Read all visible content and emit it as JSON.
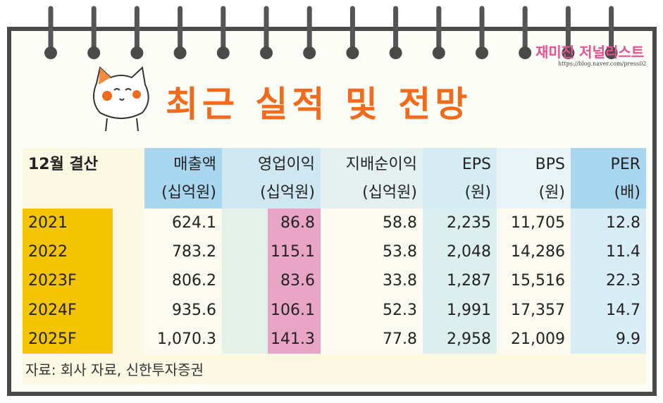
{
  "header": {
    "title": "최근 실적 및 전망",
    "logo": "재미진 저널리스트",
    "url": "https://blog.naver.com/press02"
  },
  "table": {
    "columns": [
      {
        "name": "12월 결산"
      },
      {
        "name": "매출액",
        "unit": "(십억원)"
      },
      {
        "name": "영업이익",
        "unit": "(십억원)"
      },
      {
        "name": "지배순이익",
        "unit": "(십억원)"
      },
      {
        "name": "EPS",
        "unit": "(원)"
      },
      {
        "name": "BPS",
        "unit": "(원)"
      },
      {
        "name": "PER",
        "unit": "(배)"
      }
    ],
    "rows": [
      [
        "2021",
        "624.1",
        "86.8",
        "58.8",
        "2,235",
        "11,705",
        "12.8"
      ],
      [
        "2022",
        "783.2",
        "115.1",
        "53.8",
        "2,048",
        "14,286",
        "11.4"
      ],
      [
        "2023F",
        "806.2",
        "83.6",
        "33.8",
        "1,287",
        "15,516",
        "22.3"
      ],
      [
        "2024F",
        "935.6",
        "106.1",
        "52.3",
        "1,991",
        "17,357",
        "14.7"
      ],
      [
        "2025F",
        "1,070.3",
        "141.3",
        "77.8",
        "2,958",
        "21,009",
        "9.9"
      ]
    ]
  },
  "source": "자료: 회사 자료, 신한투자증권"
}
